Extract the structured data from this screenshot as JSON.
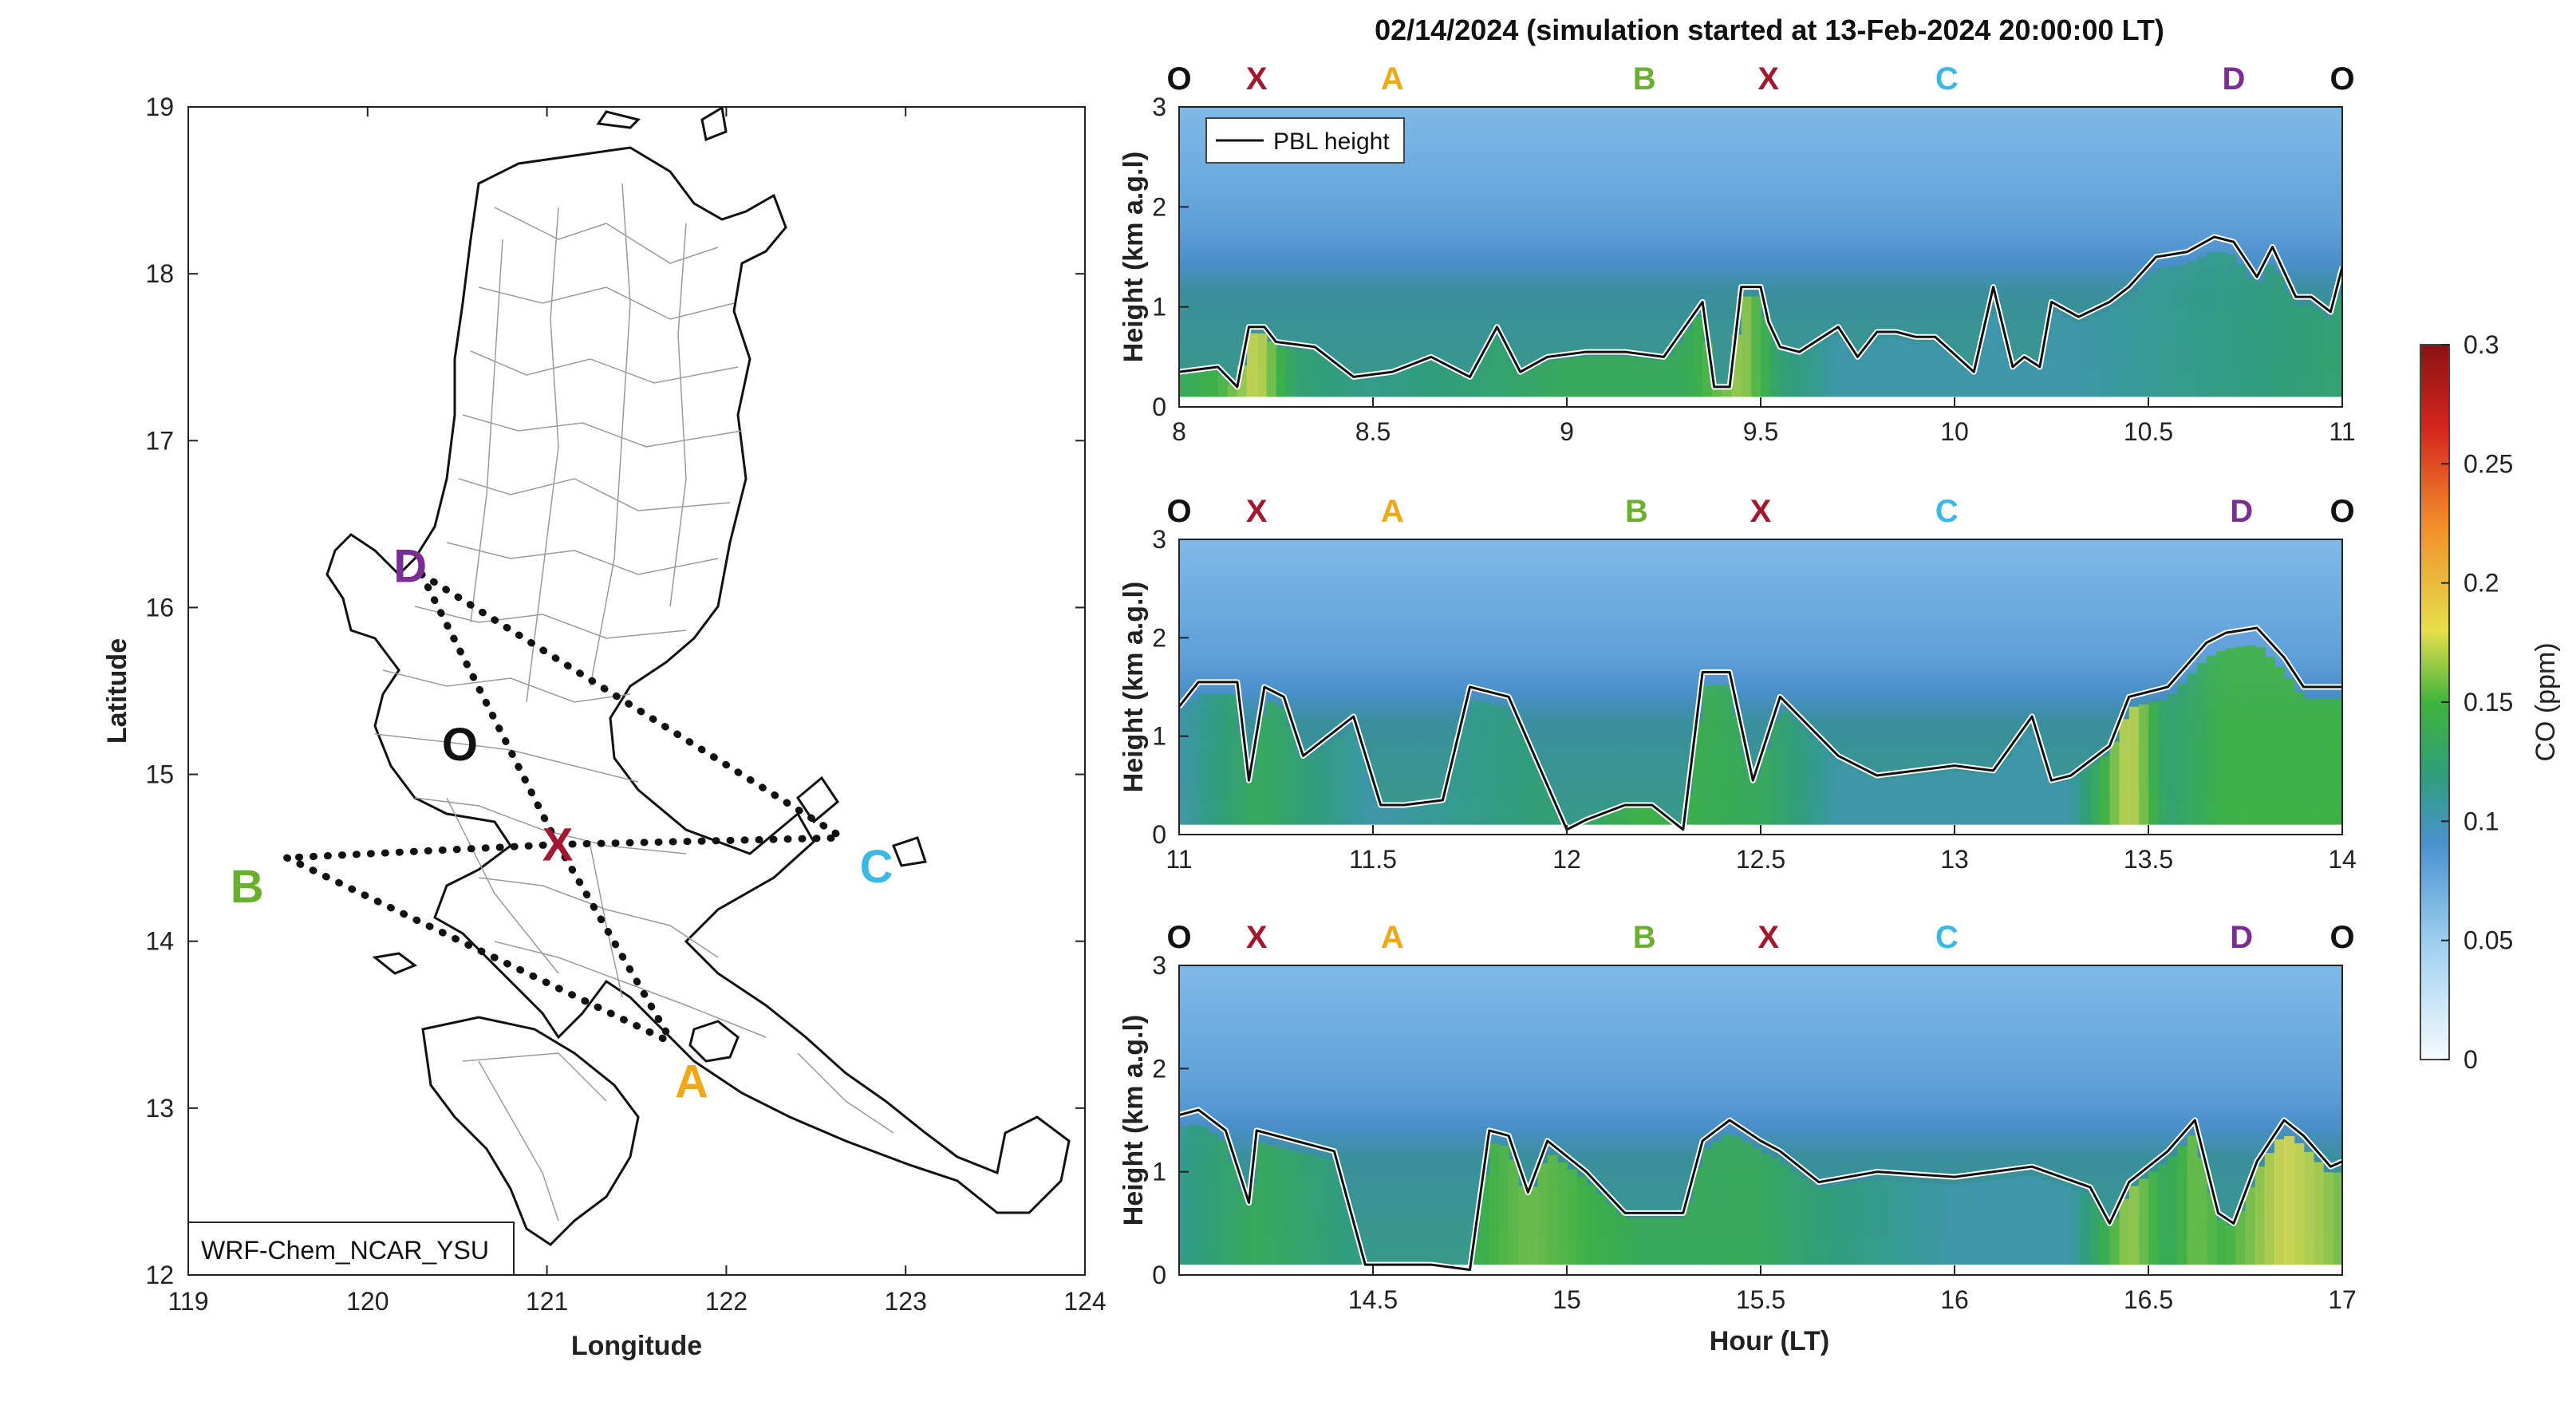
{
  "colors": {
    "O": "#111111",
    "X": "#a3182f",
    "A": "#f0a818",
    "B": "#6ab02e",
    "C": "#3cb8e6",
    "D": "#7a2e94",
    "pbl_line": "#111111",
    "pbl_halo": "#ffffff"
  },
  "map": {
    "xlabel": "Longitude",
    "ylabel": "Latitude",
    "xlim": [
      119,
      124
    ],
    "ylim": [
      12,
      19
    ],
    "xticks": [
      "119",
      "120",
      "121",
      "122",
      "123",
      "124"
    ],
    "yticks": [
      "12",
      "13",
      "14",
      "15",
      "16",
      "17",
      "18",
      "19"
    ],
    "legend_box": "WRF-Chem_NCAR_YSU",
    "sites": [
      {
        "name": "O",
        "lon": 120.55,
        "lat": 15.16
      },
      {
        "name": "X",
        "lon": 121.06,
        "lat": 14.58
      },
      {
        "name": "A",
        "lon": 121.7,
        "lat": 13.39
      },
      {
        "name": "B",
        "lon": 119.55,
        "lat": 14.5
      },
      {
        "name": "C",
        "lon": 122.65,
        "lat": 14.62
      },
      {
        "name": "D",
        "lon": 120.3,
        "lat": 16.2
      }
    ],
    "route_pairs": [
      [
        "D",
        "X"
      ],
      [
        "D",
        "C"
      ],
      [
        "X",
        "C"
      ],
      [
        "X",
        "B"
      ],
      [
        "X",
        "A"
      ],
      [
        "B",
        "A"
      ]
    ]
  },
  "title": "02/14/2024 (simulation started at 13-Feb-2024 20:00:00 LT)",
  "chart_data": [
    {
      "type": "heatmap",
      "xlim": [
        8,
        11
      ],
      "xticks": [
        "8",
        "8.5",
        "9",
        "9.5",
        "10",
        "10.5",
        "11"
      ],
      "ylim": [
        0,
        3
      ],
      "yticks": [
        "0",
        "1",
        "2",
        "3"
      ],
      "ylabel": "Height (km a.g.l)",
      "legend": "PBL height",
      "route_labels": [
        {
          "label": "O",
          "x": 8.0
        },
        {
          "label": "X",
          "x": 8.2
        },
        {
          "label": "A",
          "x": 8.55
        },
        {
          "label": "B",
          "x": 9.2
        },
        {
          "label": "X",
          "x": 9.52
        },
        {
          "label": "C",
          "x": 9.98
        },
        {
          "label": "D",
          "x": 10.72
        },
        {
          "label": "O",
          "x": 11.0
        }
      ],
      "pbl_height_km": {
        "x": [
          8.0,
          8.1,
          8.15,
          8.18,
          8.22,
          8.25,
          8.35,
          8.45,
          8.55,
          8.65,
          8.75,
          8.82,
          8.88,
          8.95,
          9.05,
          9.15,
          9.25,
          9.35,
          9.38,
          9.42,
          9.45,
          9.5,
          9.52,
          9.55,
          9.6,
          9.7,
          9.75,
          9.8,
          9.85,
          9.9,
          9.95,
          10.05,
          10.1,
          10.15,
          10.18,
          10.22,
          10.25,
          10.32,
          10.4,
          10.45,
          10.52,
          10.6,
          10.67,
          10.72,
          10.78,
          10.82,
          10.88,
          10.92,
          10.97,
          11.0
        ],
        "y": [
          0.35,
          0.4,
          0.2,
          0.8,
          0.8,
          0.65,
          0.6,
          0.3,
          0.35,
          0.5,
          0.3,
          0.8,
          0.35,
          0.5,
          0.55,
          0.55,
          0.5,
          1.05,
          0.2,
          0.2,
          1.2,
          1.2,
          0.85,
          0.6,
          0.55,
          0.8,
          0.5,
          0.75,
          0.75,
          0.7,
          0.7,
          0.35,
          1.2,
          0.4,
          0.5,
          0.4,
          1.05,
          0.9,
          1.05,
          1.2,
          1.5,
          1.55,
          1.7,
          1.65,
          1.3,
          1.6,
          1.1,
          1.1,
          0.95,
          1.4
        ]
      },
      "co_ppm_near_surface": {
        "x": [
          8.0,
          8.1,
          8.2,
          8.3,
          8.5,
          8.8,
          9.0,
          9.3,
          9.45,
          9.55,
          9.7,
          10.0,
          10.3,
          10.6,
          11.0
        ],
        "y": [
          0.13,
          0.14,
          0.17,
          0.12,
          0.11,
          0.12,
          0.13,
          0.13,
          0.16,
          0.12,
          0.1,
          0.1,
          0.1,
          0.11,
          0.12
        ]
      }
    },
    {
      "type": "heatmap",
      "xlim": [
        11,
        14
      ],
      "xticks": [
        "11",
        "11.5",
        "12",
        "12.5",
        "13",
        "13.5",
        "14"
      ],
      "ylim": [
        0,
        3
      ],
      "yticks": [
        "0",
        "1",
        "2",
        "3"
      ],
      "ylabel": "Height (km a.g.l)",
      "route_labels": [
        {
          "label": "O",
          "x": 11.0
        },
        {
          "label": "X",
          "x": 11.2
        },
        {
          "label": "A",
          "x": 11.55
        },
        {
          "label": "B",
          "x": 12.18
        },
        {
          "label": "X",
          "x": 12.5
        },
        {
          "label": "C",
          "x": 12.98
        },
        {
          "label": "D",
          "x": 13.74
        },
        {
          "label": "O",
          "x": 14.0
        }
      ],
      "pbl_height_km": {
        "x": [
          11.0,
          11.05,
          11.15,
          11.18,
          11.22,
          11.27,
          11.32,
          11.45,
          11.52,
          11.58,
          11.68,
          11.75,
          11.85,
          12.0,
          12.05,
          12.15,
          12.22,
          12.3,
          12.35,
          12.42,
          12.48,
          12.55,
          12.6,
          12.7,
          12.8,
          12.9,
          13.0,
          13.1,
          13.2,
          13.25,
          13.3,
          13.4,
          13.45,
          13.55,
          13.65,
          13.7,
          13.78,
          13.85,
          13.9,
          13.95,
          14.0
        ],
        "y": [
          1.3,
          1.55,
          1.55,
          0.55,
          1.5,
          1.4,
          0.8,
          1.2,
          0.3,
          0.3,
          0.35,
          1.5,
          1.4,
          0.05,
          0.15,
          0.3,
          0.3,
          0.05,
          1.65,
          1.65,
          0.55,
          1.4,
          1.2,
          0.8,
          0.6,
          0.65,
          0.7,
          0.65,
          1.2,
          0.55,
          0.6,
          0.9,
          1.4,
          1.5,
          1.95,
          2.05,
          2.1,
          1.8,
          1.5,
          1.5,
          1.5
        ]
      },
      "co_ppm_near_surface": {
        "x": [
          11.0,
          11.2,
          11.5,
          12.0,
          12.2,
          12.5,
          12.7,
          13.0,
          13.3,
          13.45,
          13.55,
          13.7,
          13.9,
          14.0
        ],
        "y": [
          0.1,
          0.13,
          0.1,
          0.12,
          0.14,
          0.13,
          0.1,
          0.1,
          0.1,
          0.17,
          0.12,
          0.14,
          0.14,
          0.14
        ]
      }
    },
    {
      "type": "heatmap",
      "xlim": [
        14,
        17
      ],
      "xticks": [
        "14.5",
        "15",
        "15.5",
        "16",
        "16.5",
        "17"
      ],
      "ylim": [
        0,
        3
      ],
      "yticks": [
        "0",
        "1",
        "2",
        "3"
      ],
      "xlabel": "Hour (LT)",
      "ylabel": "Height (km a.g.l)",
      "route_labels": [
        {
          "label": "O",
          "x": 14.0
        },
        {
          "label": "X",
          "x": 14.2
        },
        {
          "label": "A",
          "x": 14.55
        },
        {
          "label": "B",
          "x": 15.2
        },
        {
          "label": "X",
          "x": 15.52
        },
        {
          "label": "C",
          "x": 15.98
        },
        {
          "label": "D",
          "x": 16.74
        },
        {
          "label": "O",
          "x": 17.0
        }
      ],
      "pbl_height_km": {
        "x": [
          14.0,
          14.05,
          14.12,
          14.18,
          14.2,
          14.25,
          14.3,
          14.4,
          14.48,
          14.5,
          14.6,
          14.65,
          14.75,
          14.8,
          14.85,
          14.9,
          14.95,
          15.05,
          15.15,
          15.3,
          15.35,
          15.42,
          15.5,
          15.55,
          15.65,
          15.8,
          16.0,
          16.2,
          16.35,
          16.4,
          16.45,
          16.55,
          16.62,
          16.68,
          16.72,
          16.78,
          16.85,
          16.9,
          16.97,
          17.0
        ],
        "y": [
          1.55,
          1.6,
          1.4,
          0.7,
          1.4,
          1.35,
          1.3,
          1.2,
          0.1,
          0.1,
          0.1,
          0.1,
          0.05,
          1.4,
          1.35,
          0.8,
          1.3,
          1.0,
          0.6,
          0.6,
          1.3,
          1.5,
          1.3,
          1.2,
          0.9,
          1.0,
          0.95,
          1.05,
          0.85,
          0.5,
          0.9,
          1.2,
          1.5,
          0.6,
          0.5,
          1.1,
          1.5,
          1.35,
          1.05,
          1.1
        ]
      },
      "co_ppm_near_surface": {
        "x": [
          14.0,
          14.2,
          14.5,
          14.9,
          15.2,
          15.5,
          15.6,
          16.0,
          16.3,
          16.45,
          16.55,
          16.62,
          16.7,
          16.85,
          16.95,
          17.0
        ],
        "y": [
          0.11,
          0.13,
          0.11,
          0.15,
          0.13,
          0.13,
          0.12,
          0.1,
          0.1,
          0.16,
          0.13,
          0.15,
          0.14,
          0.17,
          0.16,
          0.15
        ]
      }
    }
  ],
  "colorbar": {
    "label": "CO (ppm)",
    "range": [
      0,
      0.3
    ],
    "ticks": [
      "0",
      "0.05",
      "0.1",
      "0.15",
      "0.2",
      "0.25",
      "0.3"
    ],
    "stops": [
      "#f6fbff",
      "#9fd0ef",
      "#4a92d0",
      "#2f9e7a",
      "#3fb43c",
      "#e6df4c",
      "#f28c2a",
      "#d6271f",
      "#8a1212"
    ]
  }
}
